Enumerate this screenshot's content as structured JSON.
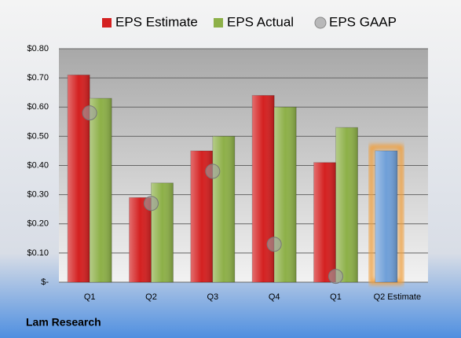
{
  "chart_data": {
    "type": "bar",
    "annotation": "Lam Research",
    "categories": [
      "Q1",
      "Q2",
      "Q3",
      "Q4",
      "Q1",
      "Q2 Estimate"
    ],
    "series": [
      {
        "name": "EPS Estimate",
        "color": "#d42020",
        "values": [
          0.71,
          0.29,
          0.45,
          0.64,
          0.41,
          0.45
        ],
        "point_colors": [
          "#d42020",
          "#d42020",
          "#d42020",
          "#d42020",
          "#d42020",
          "#6f9fd8"
        ]
      },
      {
        "name": "EPS Actual",
        "color": "#8db048",
        "values": [
          0.63,
          0.34,
          0.5,
          0.6,
          0.53,
          null
        ]
      },
      {
        "name": "EPS GAAP",
        "color": "#a0a0a0",
        "type": "bubble",
        "values": [
          0.58,
          0.27,
          0.38,
          0.13,
          0.02,
          null
        ]
      }
    ],
    "ylim": [
      0,
      0.8
    ],
    "yticks": [
      {
        "value": 0,
        "label": "$-"
      },
      {
        "value": 0.1,
        "label": "$0.10"
      },
      {
        "value": 0.2,
        "label": "$0.20"
      },
      {
        "value": 0.3,
        "label": "$0.30"
      },
      {
        "value": 0.4,
        "label": "$0.40"
      },
      {
        "value": 0.5,
        "label": "$0.50"
      },
      {
        "value": 0.6,
        "label": "$0.60"
      },
      {
        "value": 0.7,
        "label": "$0.70"
      },
      {
        "value": 0.8,
        "label": "$0.80"
      }
    ],
    "grid": true,
    "legend": "top"
  }
}
